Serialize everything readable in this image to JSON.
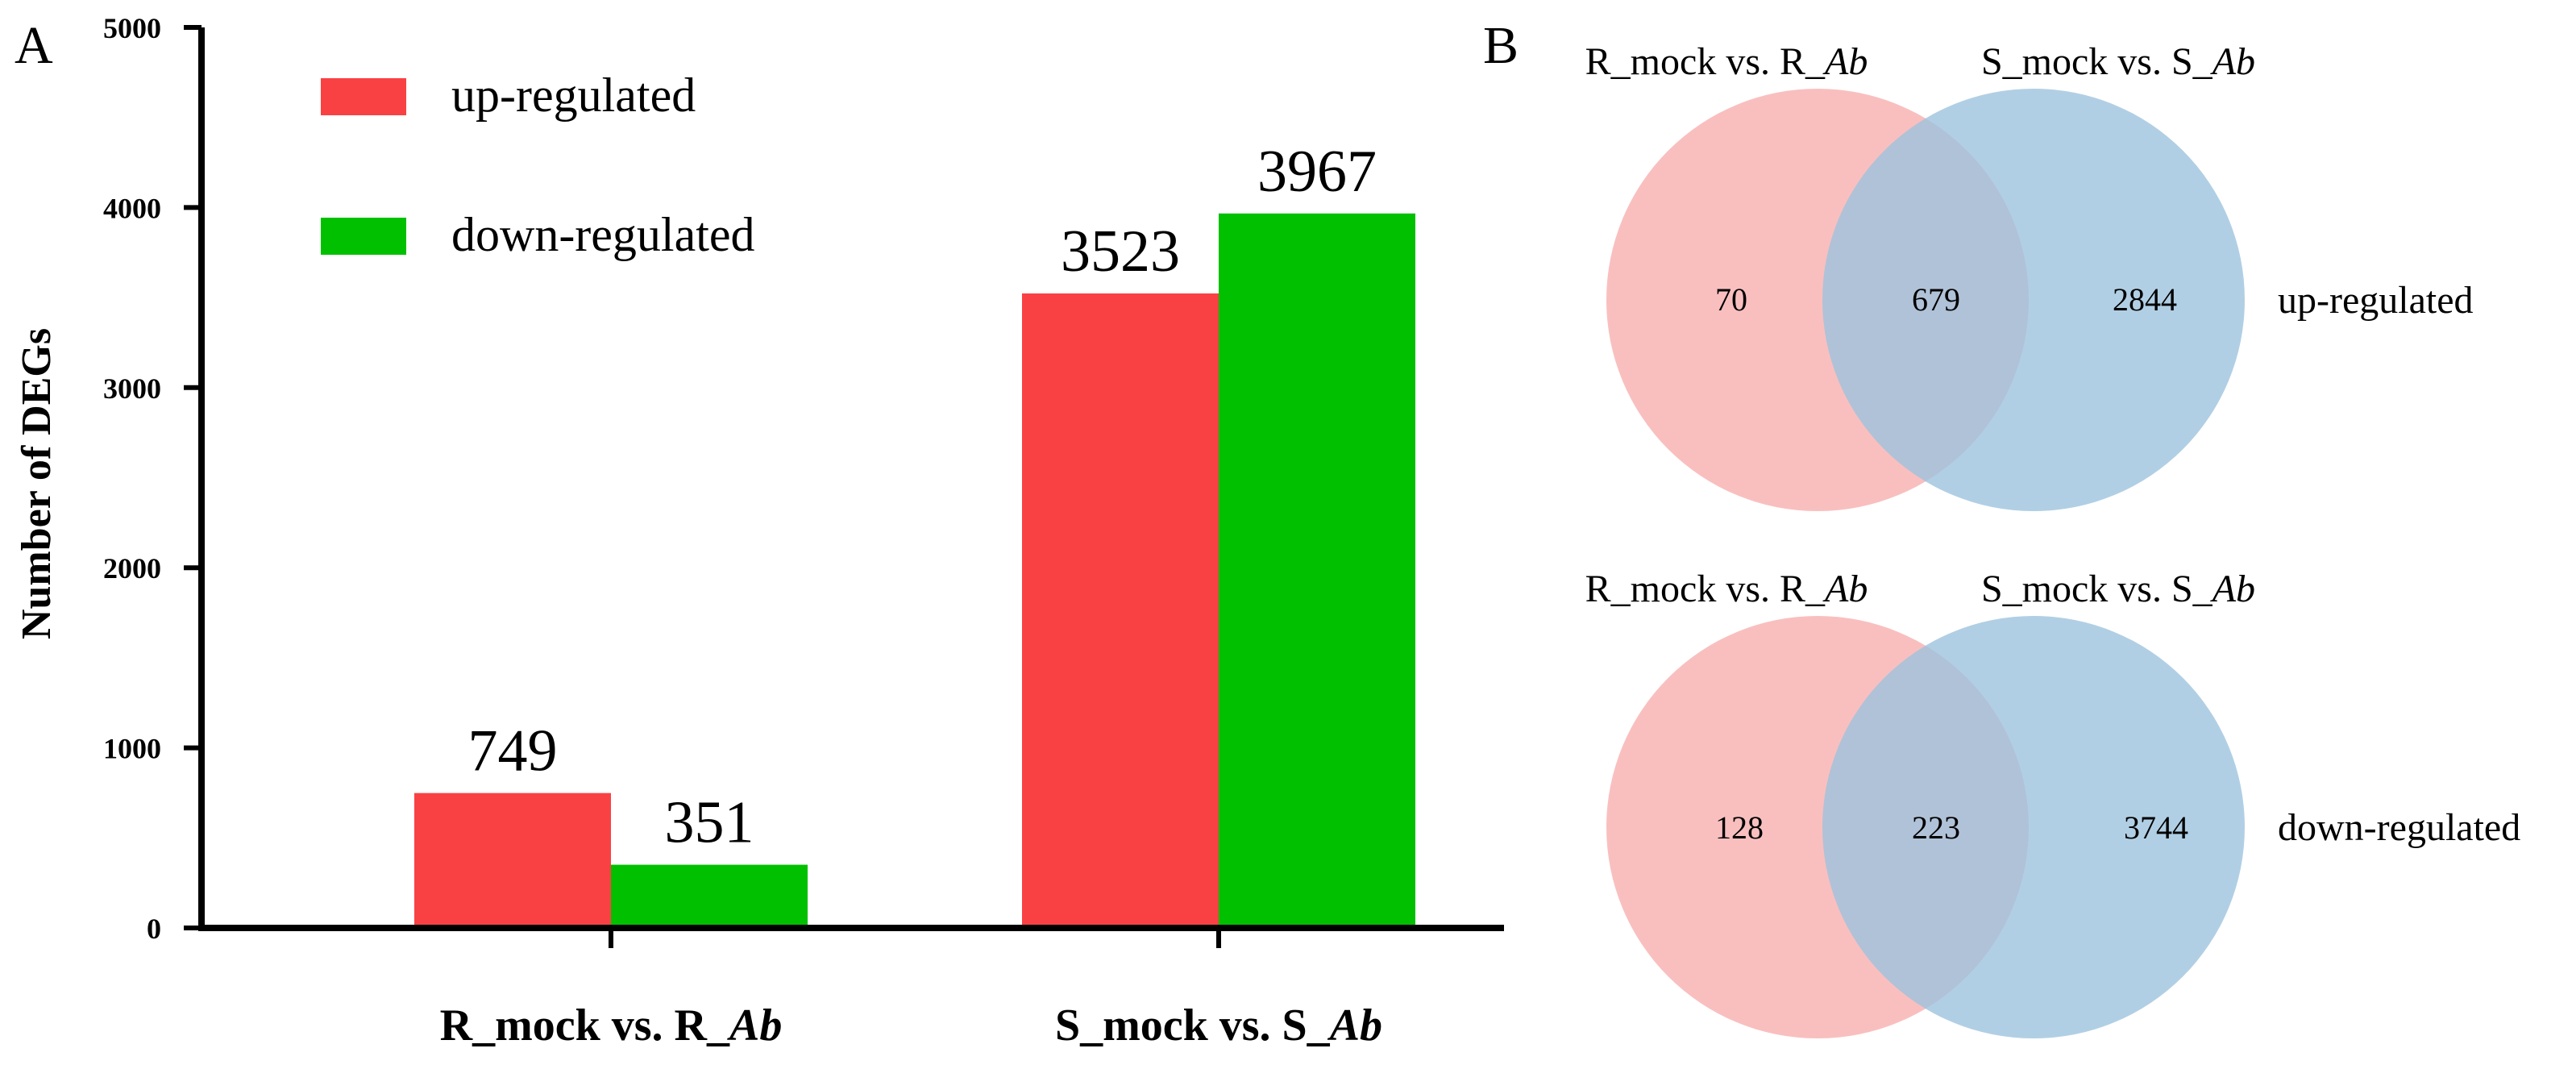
{
  "panels": {
    "a": "A",
    "b": "B"
  },
  "chart_data": [
    {
      "type": "bar",
      "title": "",
      "ylabel": "Number of DEGs",
      "xlabel": "",
      "ylim": [
        0,
        5000
      ],
      "yticks": [
        "0",
        "1000",
        "2000",
        "3000",
        "4000",
        "5000"
      ],
      "categories": [
        {
          "prefix": "R_mock vs. R_",
          "suffix": "Ab"
        },
        {
          "prefix": "S_mock vs. S_",
          "suffix": "Ab"
        }
      ],
      "series": [
        {
          "name": "up-regulated",
          "color": "#f94144",
          "values": [
            749,
            3523
          ]
        },
        {
          "name": "down-regulated",
          "color": "#00c000",
          "values": [
            351,
            3967
          ]
        }
      ],
      "data_labels": true,
      "legend_position": "top-left"
    },
    {
      "type": "venn",
      "set_labels": [
        {
          "prefix": "R_mock vs. R_",
          "suffix": "Ab",
          "color": "#f8b4b4"
        },
        {
          "prefix": "S_mock vs. S_",
          "suffix": "Ab",
          "color": "#9ec3dd"
        }
      ],
      "diagrams": [
        {
          "name": "up-regulated",
          "only_a": 70,
          "both": 679,
          "only_b": 2844
        },
        {
          "name": "down-regulated",
          "only_a": 128,
          "both": 223,
          "only_b": 3744
        }
      ]
    }
  ]
}
